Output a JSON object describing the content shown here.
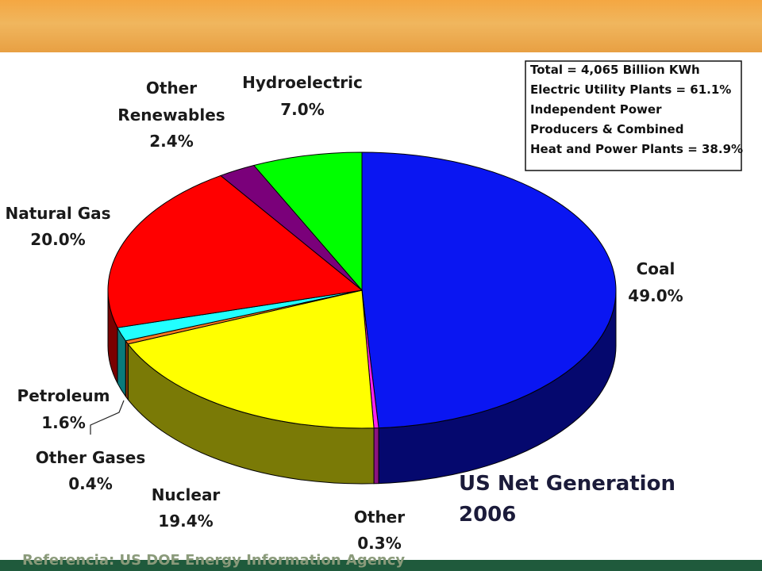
{
  "colors": {
    "banner": "#f2ae4f",
    "background": "#1f5a3c",
    "panel": "#ffffff"
  },
  "chart_data": {
    "type": "pie",
    "title": "US Net Generation",
    "subtitle": "2006",
    "legend_placement": "top-right",
    "slices": [
      {
        "label": "Coal",
        "value_label": "49.0%",
        "value": 49.0,
        "color": "#0a16f2",
        "side": "#05086e"
      },
      {
        "label": "Other",
        "value_label": "0.3%",
        "value": 0.3,
        "color": "#ff22ee",
        "side": "#8a1280"
      },
      {
        "label": "Nuclear",
        "value_label": "19.4%",
        "value": 19.4,
        "color": "#ffff00",
        "side": "#7a7a06"
      },
      {
        "label": "Other Gases",
        "value_label": "0.4%",
        "value": 0.4,
        "color": "#ff7a20",
        "side": "#8a3a08"
      },
      {
        "label": "Petroleum",
        "value_label": "1.6%",
        "value": 1.6,
        "color": "#22ffff",
        "side": "#0a7a7a"
      },
      {
        "label": "Natural Gas",
        "value_label": "20.0%",
        "value": 20.0,
        "color": "#ff0000",
        "side": "#7a0000"
      },
      {
        "label": "Other Renewables",
        "value_label": "2.4%",
        "value": 2.4,
        "color": "#7a007a",
        "side": "#3a003a"
      },
      {
        "label": "Hydroelectric",
        "value_label": "7.0%",
        "value": 7.0,
        "color": "#00ff00",
        "side": "#007a00"
      }
    ],
    "annotation_lines": [
      "Total = 4,065 Billion KWh",
      "Electric Utility Plants = 61.1%",
      "Independent Power",
      "Producers & Combined",
      "Heat and Power Plants = 38.9%"
    ],
    "labels": {
      "hydro": [
        "Hydroelectric",
        "7.0%"
      ],
      "other_ren": [
        "Other",
        "Renewables",
        "2.4%"
      ],
      "natgas": [
        "Natural Gas",
        "20.0%"
      ],
      "coal": [
        "Coal",
        "49.0%"
      ],
      "petroleum": [
        "Petroleum",
        "1.6%"
      ],
      "othergases": [
        "Other Gases",
        "0.4%"
      ],
      "nuclear": [
        "Nuclear",
        "19.4%"
      ],
      "other": [
        "Other",
        "0.3%"
      ]
    }
  },
  "footer": {
    "reference": "Referencia: US DOE Energy Information Agency"
  }
}
